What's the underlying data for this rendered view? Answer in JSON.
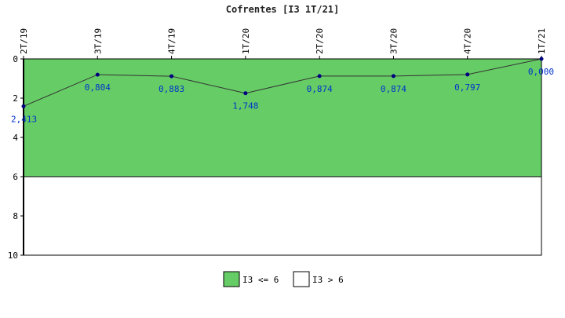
{
  "chart_data": {
    "type": "line",
    "title": "Cofrentes [I3 1T/21]",
    "categories": [
      "2T/19",
      "3T/19",
      "4T/19",
      "1T/20",
      "2T/20",
      "3T/20",
      "4T/20",
      "1T/21"
    ],
    "series": [
      {
        "values": [
          2.413,
          0.804,
          0.883,
          1.748,
          0.874,
          0.874,
          0.797,
          0.0
        ]
      }
    ],
    "data_labels": [
      "2,413",
      "0,804",
      "0,883",
      "1,748",
      "0,874",
      "0,874",
      "0,797",
      "0,000"
    ],
    "ylim": [
      0,
      10
    ],
    "y_inverted": true,
    "y_ticks": [
      "0",
      "2",
      "4",
      "6",
      "8",
      "10"
    ],
    "threshold": 6,
    "bands": [
      {
        "name": "I3 <= 6",
        "from": 0,
        "to": 6,
        "color": "#66cc66"
      },
      {
        "name": "I3 > 6",
        "from": 6,
        "to": 10,
        "color": "#ffffff"
      }
    ],
    "line_color": "#333333",
    "marker_color": "#000080",
    "label_color": "#0033cc",
    "legend_position": "bottom-center"
  }
}
